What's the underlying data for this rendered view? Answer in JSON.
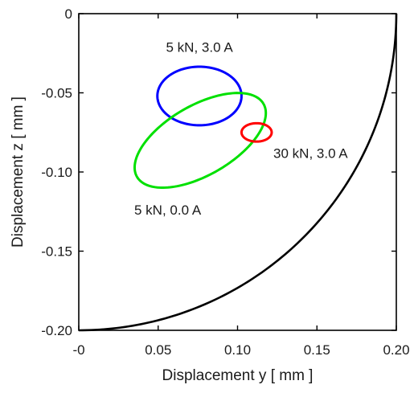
{
  "chart_data": {
    "type": "line",
    "title": "",
    "xlabel": "Displacement y   [ mm ]",
    "ylabel": "Displacement z   [ mm ]",
    "xlim": [
      0,
      0.2
    ],
    "ylim": [
      -0.2,
      0
    ],
    "grid": false,
    "legend": "none",
    "x_ticks": [
      {
        "value": 0,
        "label": "-0"
      },
      {
        "value": 0.05,
        "label": "0.05"
      },
      {
        "value": 0.1,
        "label": "0.10"
      },
      {
        "value": 0.15,
        "label": "0.15"
      },
      {
        "value": 0.2,
        "label": "0.20"
      }
    ],
    "y_ticks": [
      {
        "value": 0,
        "label": "0"
      },
      {
        "value": -0.05,
        "label": "-0.05"
      },
      {
        "value": -0.1,
        "label": "-0.10"
      },
      {
        "value": -0.15,
        "label": "-0.15"
      },
      {
        "value": -0.2,
        "label": "-0.20"
      }
    ],
    "boundary": {
      "type": "circular-arc",
      "center": [
        0,
        0
      ],
      "radius": 0.2,
      "color": "#000000"
    },
    "series": [
      {
        "name": "5 kN, 3.0 A",
        "color": "#0000ff",
        "shape": "ellipse",
        "center": [
          0.076,
          -0.052
        ],
        "semi_axes": [
          0.0265,
          0.0185
        ],
        "rotation_deg": 0
      },
      {
        "name": "5 kN, 0.0 A",
        "color": "#00e000",
        "shape": "ellipse",
        "center": [
          0.0765,
          -0.08
        ],
        "semi_axes": [
          0.046,
          0.022
        ],
        "rotation_deg": 30
      },
      {
        "name": "30 kN, 3.0 A",
        "color": "#ff0000",
        "shape": "ellipse",
        "center": [
          0.112,
          -0.075
        ],
        "semi_axes": [
          0.0095,
          0.0058
        ],
        "rotation_deg": 0
      }
    ],
    "annotations": [
      {
        "text": "5 kN, 3.0 A",
        "x": 0.076,
        "y": -0.024
      },
      {
        "text": "5 kN, 0.0 A",
        "x": 0.056,
        "y": -0.127
      },
      {
        "text": "30 kN, 3.0 A",
        "x": 0.146,
        "y": -0.091
      }
    ]
  }
}
